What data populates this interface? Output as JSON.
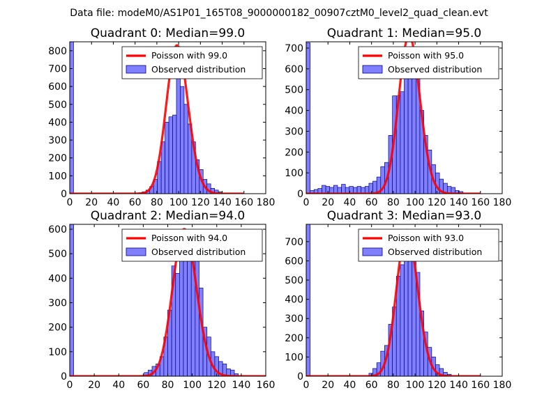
{
  "figure_title": "Data file: modeM0/AS1P01_165T08_9000000182_00907cztM0_level2_quad_clean.evt",
  "colors": {
    "poisson": "#ff0000",
    "bars_fill": "#8080ff",
    "bars_edge": "#000088"
  },
  "legend": {
    "observed_label": "Observed distribution"
  },
  "chart_data": [
    {
      "type": "bar",
      "title": "Quadrant 0: Median=99.0",
      "poisson_label": "Poisson with 99.0",
      "poisson_lambda": 99.0,
      "poisson_peak": 830,
      "xlim": [
        0,
        180
      ],
      "ylim": [
        0,
        850
      ],
      "xticks": [
        0,
        20,
        40,
        60,
        80,
        100,
        120,
        140,
        160,
        180
      ],
      "yticks": [
        0,
        100,
        200,
        300,
        400,
        500,
        600,
        700,
        800
      ],
      "bin_width": 3.5,
      "bins": [
        [
          0,
          850
        ],
        [
          63,
          5
        ],
        [
          66.5,
          10
        ],
        [
          70,
          20
        ],
        [
          73.5,
          40
        ],
        [
          77,
          80
        ],
        [
          80.5,
          180
        ],
        [
          84,
          290
        ],
        [
          87.5,
          400
        ],
        [
          91,
          430
        ],
        [
          94.5,
          440
        ],
        [
          98,
          650
        ],
        [
          101.5,
          600
        ],
        [
          105,
          500
        ],
        [
          108.5,
          390
        ],
        [
          112,
          290
        ],
        [
          115.5,
          190
        ],
        [
          119,
          135
        ],
        [
          122.5,
          80
        ],
        [
          126,
          55
        ],
        [
          129.5,
          30
        ],
        [
          133,
          20
        ],
        [
          136.5,
          10
        ]
      ]
    },
    {
      "type": "bar",
      "title": "Quadrant 1: Median=95.0",
      "poisson_label": "Poisson with 95.0",
      "poisson_lambda": 95.0,
      "poisson_peak": 760,
      "xlim": [
        0,
        180
      ],
      "ylim": [
        0,
        730
      ],
      "xticks": [
        0,
        20,
        40,
        60,
        80,
        100,
        120,
        140,
        160,
        180
      ],
      "yticks": [
        0,
        100,
        200,
        300,
        400,
        500,
        600,
        700
      ],
      "bin_width": 3.6,
      "bins": [
        [
          0,
          725
        ],
        [
          3.6,
          15
        ],
        [
          7.2,
          20
        ],
        [
          10.8,
          25
        ],
        [
          14.4,
          40
        ],
        [
          18,
          35
        ],
        [
          21.6,
          30
        ],
        [
          25.2,
          40
        ],
        [
          28.8,
          30
        ],
        [
          32.4,
          45
        ],
        [
          36,
          30
        ],
        [
          39.6,
          35
        ],
        [
          43.2,
          30
        ],
        [
          46.8,
          35
        ],
        [
          50.4,
          30
        ],
        [
          54,
          35
        ],
        [
          57.6,
          50
        ],
        [
          61.2,
          60
        ],
        [
          64.8,
          80
        ],
        [
          68.4,
          130
        ],
        [
          72,
          150
        ],
        [
          75.6,
          280
        ],
        [
          79.2,
          470
        ],
        [
          82.8,
          470
        ],
        [
          86.4,
          490
        ],
        [
          90,
          590
        ],
        [
          93.6,
          610
        ],
        [
          97.2,
          570
        ],
        [
          100.8,
          560
        ],
        [
          104.4,
          400
        ],
        [
          108,
          280
        ],
        [
          111.6,
          210
        ],
        [
          115.2,
          140
        ],
        [
          118.8,
          100
        ],
        [
          122.4,
          70
        ],
        [
          126,
          50
        ],
        [
          129.6,
          35
        ],
        [
          133.2,
          30
        ],
        [
          136.8,
          15
        ],
        [
          140.4,
          10
        ]
      ]
    },
    {
      "type": "bar",
      "title": "Quadrant 2: Median=94.0",
      "poisson_label": "Poisson with 94.0",
      "poisson_lambda": 94.0,
      "poisson_peak": 600,
      "xlim": [
        0,
        160
      ],
      "ylim": [
        0,
        620
      ],
      "xticks": [
        0,
        20,
        40,
        60,
        80,
        100,
        120,
        140,
        160
      ],
      "yticks": [
        0,
        100,
        200,
        300,
        400,
        500,
        600
      ],
      "bin_width": 3.2,
      "bins": [
        [
          0,
          620
        ],
        [
          60.8,
          15
        ],
        [
          64,
          25
        ],
        [
          67.2,
          40
        ],
        [
          70.4,
          50
        ],
        [
          73.6,
          80
        ],
        [
          76.8,
          160
        ],
        [
          80,
          270
        ],
        [
          83.2,
          450
        ],
        [
          86.4,
          420
        ],
        [
          89.6,
          540
        ],
        [
          92.8,
          590
        ],
        [
          96,
          590
        ],
        [
          99.2,
          500
        ],
        [
          102.4,
          590
        ],
        [
          105.6,
          360
        ],
        [
          108.8,
          200
        ],
        [
          112,
          160
        ],
        [
          115.2,
          100
        ],
        [
          118.4,
          80
        ],
        [
          121.6,
          60
        ],
        [
          124.8,
          50
        ],
        [
          128,
          30
        ],
        [
          131.2,
          25
        ],
        [
          134.4,
          10
        ]
      ]
    },
    {
      "type": "bar",
      "title": "Quadrant 3: Median=93.0",
      "poisson_label": "Poisson with 93.0",
      "poisson_lambda": 93.0,
      "poisson_peak": 760,
      "xlim": [
        0,
        180
      ],
      "ylim": [
        0,
        790
      ],
      "xticks": [
        0,
        20,
        40,
        60,
        80,
        100,
        120,
        140,
        160,
        180
      ],
      "yticks": [
        0,
        100,
        200,
        300,
        400,
        500,
        600,
        700
      ],
      "bin_width": 3.6,
      "bins": [
        [
          0,
          790
        ],
        [
          57.6,
          15
        ],
        [
          61.2,
          40
        ],
        [
          64.8,
          70
        ],
        [
          68.4,
          130
        ],
        [
          72,
          160
        ],
        [
          75.6,
          270
        ],
        [
          79.2,
          360
        ],
        [
          82.8,
          520
        ],
        [
          86.4,
          580
        ],
        [
          90,
          750
        ],
        [
          93.6,
          730
        ],
        [
          97.2,
          690
        ],
        [
          100.8,
          540
        ],
        [
          104.4,
          340
        ],
        [
          108,
          230
        ],
        [
          111.6,
          150
        ],
        [
          115.2,
          100
        ],
        [
          118.8,
          60
        ],
        [
          122.4,
          40
        ],
        [
          126,
          20
        ],
        [
          129.6,
          10
        ]
      ]
    }
  ]
}
